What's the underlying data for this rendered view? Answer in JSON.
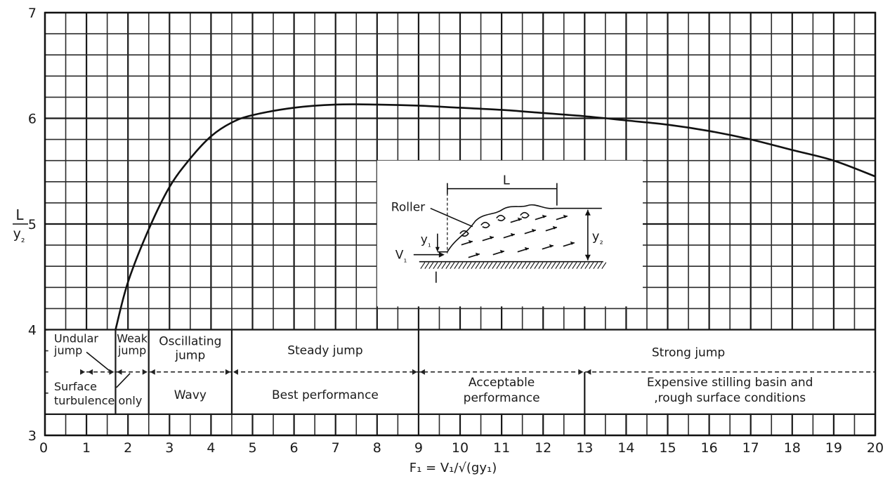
{
  "chart_data": {
    "type": "line",
    "xlabel": "F₁ = V₁/√(gy₁)",
    "ylabel_num": "L",
    "ylabel_den": "y₂",
    "xlim": [
      0,
      20
    ],
    "ylim": [
      3,
      7
    ],
    "grid": true,
    "x_ticks": [
      "0",
      "1",
      "2",
      "3",
      "4",
      "5",
      "6",
      "7",
      "8",
      "9",
      "10",
      "11",
      "12",
      "13",
      "14",
      "15",
      "16",
      "17",
      "18",
      "19",
      "20"
    ],
    "y_ticks": [
      "3",
      "4",
      "5",
      "6",
      "7"
    ],
    "series": [
      {
        "x": [
          1.7,
          2.0,
          2.5,
          3.0,
          3.5,
          4.0,
          4.5,
          5.0,
          6.0,
          7.0,
          8.0,
          9.0,
          10.0,
          11.0,
          12.0,
          13.0,
          14.0,
          15.0,
          16.0,
          17.0,
          18.0,
          19.0,
          20.0
        ],
        "y": [
          4.0,
          4.45,
          4.95,
          5.35,
          5.62,
          5.83,
          5.96,
          6.03,
          6.1,
          6.13,
          6.13,
          6.12,
          6.1,
          6.08,
          6.05,
          6.02,
          5.98,
          5.94,
          5.88,
          5.8,
          5.7,
          5.6,
          5.45
        ]
      }
    ],
    "regions": [
      {
        "name": "Undular jump",
        "note1": "Surface",
        "note2": "turbulence only",
        "x_from": 1.0,
        "x_to": 1.7
      },
      {
        "name": "Weak jump",
        "x_from": 1.7,
        "x_to": 2.5
      },
      {
        "name": "Oscillating jump",
        "note1": "Wavy",
        "x_from": 2.5,
        "x_to": 4.5
      },
      {
        "name": "Steady jump",
        "note1": "Best performance",
        "x_from": 4.5,
        "x_to": 9.0
      },
      {
        "name": "Strong jump",
        "x_from": 9.0,
        "x_to": 20.0
      },
      {
        "name": "",
        "note1": "Acceptable",
        "note2": "performance",
        "x_from": 9.0,
        "x_to": 13.0
      },
      {
        "name": "",
        "note1": "Expensive stilling basin and",
        "note2": ",rough surface conditions",
        "x_from": 13.0,
        "x_to": 20.0
      }
    ],
    "inset": {
      "label_L": "L",
      "label_roller": "Roller",
      "label_y1": "y₁",
      "label_y2": "y₂",
      "label_v1": "V₁"
    }
  }
}
